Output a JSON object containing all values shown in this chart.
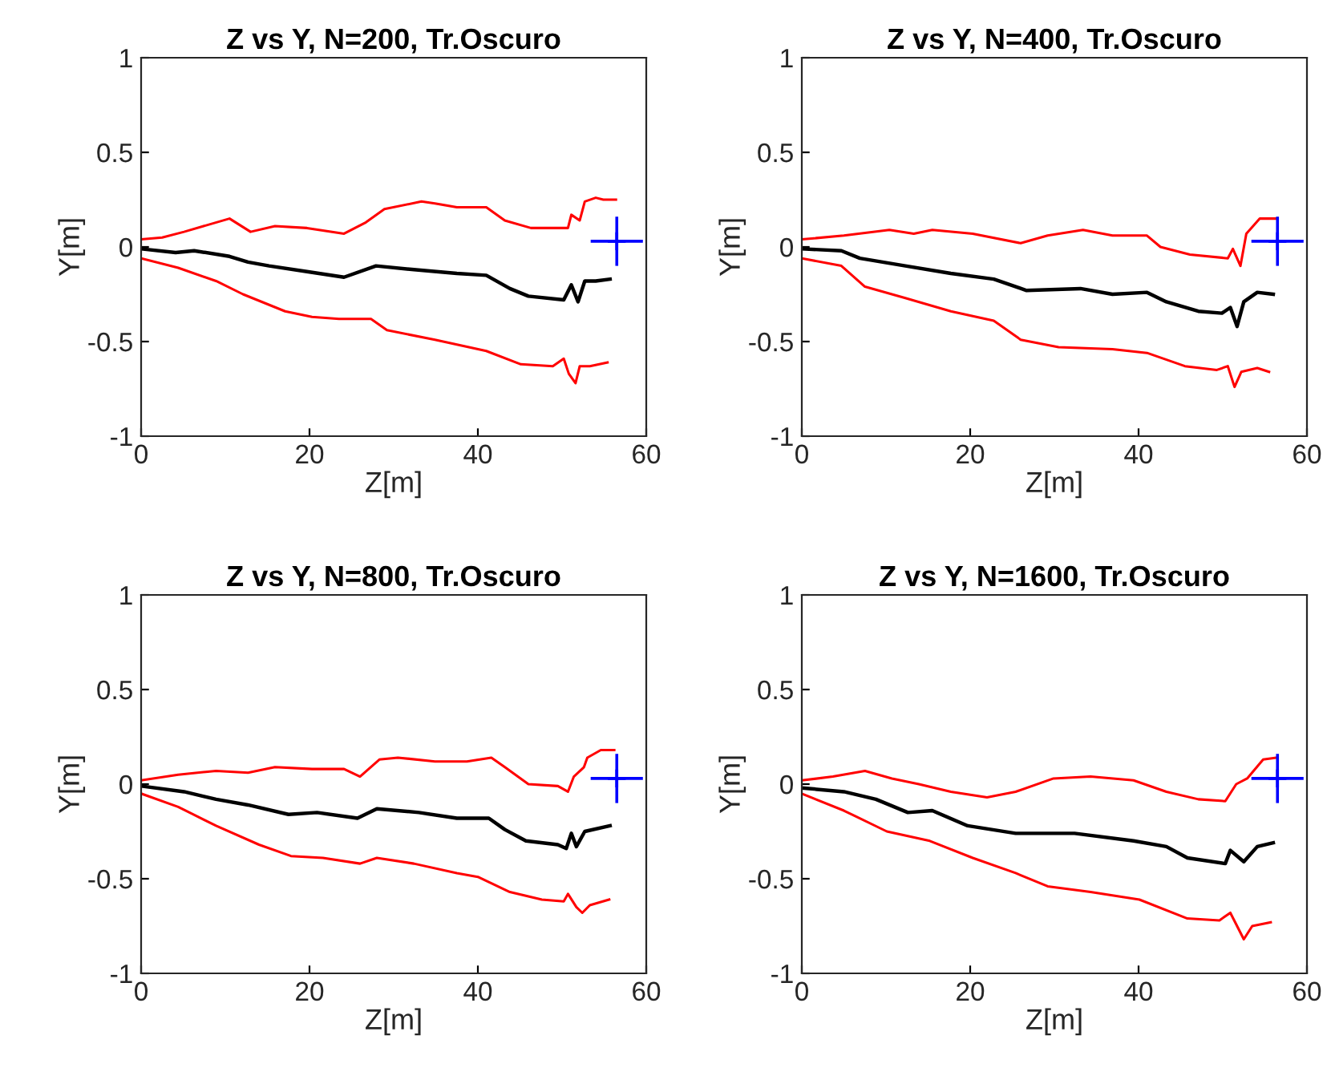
{
  "chart_data": [
    {
      "type": "line",
      "title": "Z vs Y, N=200, Tr.Oscuro",
      "xlabel": "Z[m]",
      "ylabel": "Y[m]",
      "xlim": [
        0,
        60
      ],
      "ylim": [
        -1,
        1
      ],
      "xticks": [
        0,
        20,
        40,
        60
      ],
      "yticks": [
        -1,
        -0.5,
        0,
        0.5,
        1
      ],
      "grid": false,
      "legend": false,
      "series": [
        {
          "color": "#ff0000",
          "x": [
            0,
            2.5,
            5.1,
            10.5,
            13,
            15.9,
            19.7,
            24.1,
            26.7,
            28.9,
            33.3,
            34.9,
            37.5,
            41,
            43.2,
            46.3,
            50.7,
            51.1,
            52.1,
            52.7,
            54,
            54.9,
            56.4
          ],
          "values": [
            0.04,
            0.05,
            0.08,
            0.15,
            0.08,
            0.11,
            0.1,
            0.07,
            0.13,
            0.2,
            0.24,
            0.23,
            0.21,
            0.21,
            0.14,
            0.1,
            0.1,
            0.17,
            0.14,
            0.24,
            0.26,
            0.25,
            0.25
          ]
        },
        {
          "color": "#000000",
          "x": [
            0,
            4.1,
            6.3,
            10.5,
            12.7,
            15.2,
            19.7,
            24.1,
            27.9,
            32.4,
            37.5,
            41,
            43.8,
            46,
            50.2,
            51.1,
            51.9,
            52.7,
            54,
            55.7
          ],
          "values": [
            -0.01,
            -0.03,
            -0.02,
            -0.05,
            -0.08,
            -0.1,
            -0.13,
            -0.16,
            -0.1,
            -0.12,
            -0.14,
            -0.15,
            -0.22,
            -0.26,
            -0.28,
            -0.2,
            -0.29,
            -0.18,
            -0.18,
            -0.17
          ]
        },
        {
          "color": "#ff0000",
          "x": [
            0,
            4.4,
            8.9,
            12.1,
            17.1,
            20.3,
            23.5,
            27.3,
            29.2,
            34.9,
            41,
            45.1,
            48.9,
            50.2,
            50.8,
            51.6,
            52.1,
            53.3,
            55.4
          ],
          "values": [
            -0.06,
            -0.11,
            -0.18,
            -0.25,
            -0.34,
            -0.37,
            -0.38,
            -0.38,
            -0.44,
            -0.49,
            -0.55,
            -0.62,
            -0.63,
            -0.59,
            -0.67,
            -0.72,
            -0.63,
            -0.63,
            -0.61
          ]
        },
        {
          "type": "scatter",
          "marker": "cross",
          "color": "#0000ff",
          "x": [
            56.5
          ],
          "values": [
            0.03
          ],
          "errors": [
            0.13
          ],
          "xerrors": [
            3.1
          ]
        }
      ]
    },
    {
      "type": "line",
      "title": "Z vs Y, N=400, Tr.Oscuro",
      "xlabel": "Z[m]",
      "ylabel": "Y[m]",
      "xlim": [
        0,
        60
      ],
      "ylim": [
        -1,
        1
      ],
      "xticks": [
        0,
        20,
        40,
        60
      ],
      "yticks": [
        -1,
        -0.5,
        0,
        0.5,
        1
      ],
      "grid": false,
      "legend": false,
      "series": [
        {
          "color": "#ff0000",
          "x": [
            0,
            5,
            10.4,
            13.3,
            15.5,
            20.3,
            26,
            29.2,
            33.4,
            36.9,
            41,
            42.6,
            46.1,
            50.6,
            51.2,
            52.1,
            52.8,
            54.4,
            56.4
          ],
          "values": [
            0.04,
            0.06,
            0.09,
            0.07,
            0.09,
            0.07,
            0.02,
            0.06,
            0.09,
            0.06,
            0.06,
            0.0,
            -0.04,
            -0.06,
            -0.01,
            -0.1,
            0.07,
            0.15,
            0.15
          ]
        },
        {
          "color": "#000000",
          "x": [
            0,
            4.7,
            6.9,
            12.3,
            17.7,
            22.8,
            26.7,
            33.1,
            36.9,
            41,
            43.3,
            47.1,
            49.9,
            50.9,
            51.7,
            52.5,
            54.1,
            56
          ],
          "values": [
            -0.01,
            -0.02,
            -0.06,
            -0.1,
            -0.14,
            -0.17,
            -0.23,
            -0.22,
            -0.25,
            -0.24,
            -0.29,
            -0.34,
            -0.35,
            -0.32,
            -0.42,
            -0.29,
            -0.24,
            -0.25
          ]
        },
        {
          "color": "#ff0000",
          "x": [
            0,
            4.7,
            7.5,
            12.3,
            17.7,
            22.8,
            26,
            30.5,
            36.9,
            41,
            45.5,
            49.3,
            50.6,
            51.4,
            52.2,
            54.1,
            55.5
          ],
          "values": [
            -0.06,
            -0.1,
            -0.21,
            -0.27,
            -0.34,
            -0.39,
            -0.49,
            -0.53,
            -0.54,
            -0.56,
            -0.63,
            -0.65,
            -0.63,
            -0.74,
            -0.66,
            -0.64,
            -0.66
          ]
        },
        {
          "type": "scatter",
          "marker": "cross",
          "color": "#0000ff",
          "x": [
            56.5
          ],
          "values": [
            0.03
          ],
          "errors": [
            0.13
          ],
          "xerrors": [
            3.1
          ]
        }
      ]
    },
    {
      "type": "line",
      "title": "Z vs Y, N=800, Tr.Oscuro",
      "xlabel": "Z[m]",
      "ylabel": "Y[m]",
      "xlim": [
        0,
        60
      ],
      "ylim": [
        -1,
        1
      ],
      "xticks": [
        0,
        20,
        40,
        60
      ],
      "yticks": [
        -1,
        -0.5,
        0,
        0.5,
        1
      ],
      "grid": false,
      "legend": false,
      "series": [
        {
          "color": "#ff0000",
          "x": [
            0,
            4.4,
            8.9,
            12.7,
            15.9,
            20.3,
            24.1,
            26,
            28.3,
            30.5,
            34.9,
            38.7,
            41.6,
            43.2,
            46,
            49.5,
            50.7,
            51.4,
            52.6,
            53,
            54.6,
            56.2
          ],
          "values": [
            0.02,
            0.05,
            0.07,
            0.06,
            0.09,
            0.08,
            0.08,
            0.04,
            0.13,
            0.14,
            0.12,
            0.12,
            0.14,
            0.09,
            0.0,
            -0.01,
            -0.04,
            0.04,
            0.09,
            0.14,
            0.18,
            0.18
          ]
        },
        {
          "color": "#000000",
          "x": [
            0,
            5.1,
            8.9,
            12.7,
            17.5,
            20.9,
            25.7,
            28,
            33,
            37.5,
            41.3,
            43.2,
            45.7,
            49.5,
            50.5,
            51.1,
            51.7,
            52.7,
            55.7
          ],
          "values": [
            -0.01,
            -0.04,
            -0.08,
            -0.11,
            -0.16,
            -0.15,
            -0.18,
            -0.13,
            -0.15,
            -0.18,
            -0.18,
            -0.24,
            -0.3,
            -0.32,
            -0.34,
            -0.26,
            -0.33,
            -0.25,
            -0.22
          ]
        },
        {
          "color": "#ff0000",
          "x": [
            0,
            4.4,
            8.9,
            14,
            17.8,
            21.6,
            26,
            28,
            32.4,
            37.5,
            40,
            43.8,
            47.6,
            50.2,
            50.7,
            51.7,
            52.4,
            53.3,
            55.6
          ],
          "values": [
            -0.05,
            -0.12,
            -0.22,
            -0.32,
            -0.38,
            -0.39,
            -0.42,
            -0.39,
            -0.42,
            -0.47,
            -0.49,
            -0.57,
            -0.61,
            -0.62,
            -0.58,
            -0.65,
            -0.68,
            -0.64,
            -0.61
          ]
        },
        {
          "type": "scatter",
          "marker": "cross",
          "color": "#0000ff",
          "x": [
            56.5
          ],
          "values": [
            0.03
          ],
          "errors": [
            0.13
          ],
          "xerrors": [
            3.1
          ]
        }
      ]
    },
    {
      "type": "line",
      "title": "Z vs Y, N=1600, Tr.Oscuro",
      "xlabel": "Z[m]",
      "ylabel": "Y[m]",
      "xlim": [
        0,
        60
      ],
      "ylim": [
        -1,
        1
      ],
      "xticks": [
        0,
        20,
        40,
        60
      ],
      "yticks": [
        -1,
        -0.5,
        0,
        0.5,
        1
      ],
      "grid": false,
      "legend": false,
      "series": [
        {
          "color": "#ff0000",
          "x": [
            0,
            3.7,
            7.5,
            10.7,
            13.9,
            17.7,
            22,
            25.4,
            29.9,
            34.3,
            39.4,
            43.3,
            47.1,
            50.3,
            51.6,
            52.9,
            54.8,
            56.4
          ],
          "values": [
            0.02,
            0.04,
            0.07,
            0.03,
            0.0,
            -0.04,
            -0.07,
            -0.04,
            0.03,
            0.04,
            0.02,
            -0.04,
            -0.08,
            -0.09,
            0.0,
            0.03,
            0.13,
            0.14
          ]
        },
        {
          "color": "#000000",
          "x": [
            0,
            5,
            8.8,
            12.6,
            15.5,
            19.7,
            25.4,
            32.4,
            39.4,
            43.3,
            45.8,
            50.3,
            50.9,
            52.5,
            54.1,
            56
          ],
          "values": [
            -0.02,
            -0.04,
            -0.08,
            -0.15,
            -0.14,
            -0.22,
            -0.26,
            -0.26,
            -0.3,
            -0.33,
            -0.39,
            -0.42,
            -0.35,
            -0.41,
            -0.33,
            -0.31
          ]
        },
        {
          "color": "#ff0000",
          "x": [
            0,
            5,
            10.1,
            15.2,
            20.3,
            25.4,
            29.2,
            34.3,
            40.1,
            45.8,
            49.6,
            50.9,
            52.5,
            53.5,
            55.7
          ],
          "values": [
            -0.05,
            -0.14,
            -0.25,
            -0.3,
            -0.39,
            -0.47,
            -0.54,
            -0.57,
            -0.61,
            -0.71,
            -0.72,
            -0.68,
            -0.82,
            -0.75,
            -0.73
          ]
        },
        {
          "type": "scatter",
          "marker": "cross",
          "color": "#0000ff",
          "x": [
            56.5
          ],
          "values": [
            0.03
          ],
          "errors": [
            0.13
          ],
          "xerrors": [
            3.1
          ]
        }
      ]
    }
  ]
}
